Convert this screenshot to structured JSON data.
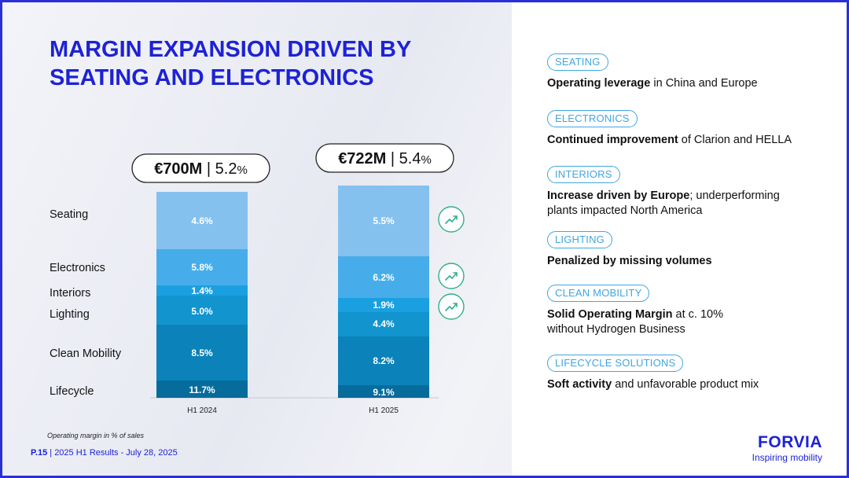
{
  "title": "MARGIN EXPANSION DRIVEN BY SEATING AND ELECTRONICS",
  "chart_data": {
    "type": "bar",
    "stacked": true,
    "categories": [
      "H1 2024",
      "H1 2025"
    ],
    "segments_bottom_to_top": [
      "Lifecycle",
      "Clean Mobility",
      "Lighting",
      "Interiors",
      "Electronics",
      "Seating"
    ],
    "series": [
      {
        "name": "Lifecycle",
        "labels": [
          "11.7%",
          "9.1%"
        ]
      },
      {
        "name": "Clean Mobility",
        "labels": [
          "8.5%",
          "8.2%"
        ]
      },
      {
        "name": "Lighting",
        "labels": [
          "5.0%",
          "4.4%"
        ]
      },
      {
        "name": "Interiors",
        "labels": [
          "1.4%",
          "1.9%"
        ]
      },
      {
        "name": "Electronics",
        "labels": [
          "5.8%",
          "6.2%"
        ]
      },
      {
        "name": "Seating",
        "labels": [
          "4.6%",
          "5.5%"
        ]
      }
    ],
    "totals": [
      {
        "amount": "€700M",
        "sep": " | ",
        "margin": "5.2",
        "unit": "%"
      },
      {
        "amount": "€722M",
        "sep": " | ",
        "margin": "5.4",
        "unit": "%"
      }
    ],
    "trend_up_icons": [
      "Seating",
      "Electronics",
      "Interiors"
    ],
    "colors": {
      "Seating": "#84c1ef",
      "Electronics": "#47adea",
      "Interiors": "#1aa0e0",
      "Lighting": "#1294cf",
      "Clean Mobility": "#0b82b9",
      "Lifecycle": "#056c9c",
      "trend": "#2fae8a"
    }
  },
  "footnote": "Operating margin in % of sales",
  "footer": {
    "page": "P.15",
    "text": " | 2025 H1 Results - July 28, 2025"
  },
  "highlights": [
    {
      "tag": "SEATING",
      "bold": "Operating leverage",
      "rest": " in China and Europe"
    },
    {
      "tag": "ELECTRONICS",
      "bold": "Continued improvement",
      "rest": " of Clarion and HELLA"
    },
    {
      "tag": "INTERIORS",
      "bold": "Increase driven by Europe",
      "rest": "; underperforming plants impacted North America"
    },
    {
      "tag": "LIGHTING",
      "bold": "Penalized by missing volumes",
      "rest": ""
    },
    {
      "tag": "CLEAN MOBILITY",
      "bold": "Solid Operating Margin",
      "rest": " at c. 10% without Hydrogen Business"
    },
    {
      "tag": "LIFECYCLE SOLUTIONS",
      "bold": "Soft activity",
      "rest": " and unfavorable product mix"
    }
  ],
  "logo": {
    "word": "FORVIA",
    "tagline": "Inspiring mobility"
  }
}
